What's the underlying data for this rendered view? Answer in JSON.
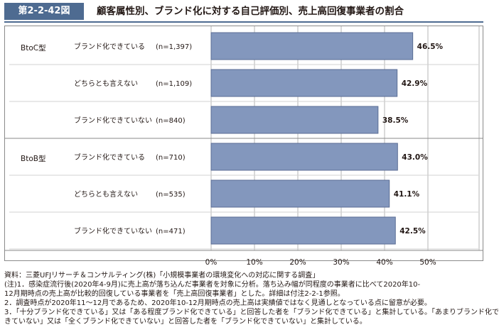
{
  "figure": {
    "number": "第2-2-42図",
    "title": "顧客属性別、ブランド化に対する自己評価別、売上高回復事業者の割合"
  },
  "chart_data": {
    "type": "bar",
    "orientation": "horizontal",
    "groups": [
      {
        "name": "BtoC型",
        "rows": [
          {
            "label": "ブランド化できている",
            "n": "(n=1,397)",
            "value": 46.5,
            "value_label": "46.5%"
          },
          {
            "label": "どちらとも言えない",
            "n": "(n=1,109)",
            "value": 42.9,
            "value_label": "42.9%"
          },
          {
            "label": "ブランド化できていない",
            "n": "(n=840)",
            "value": 38.5,
            "value_label": "38.5%"
          }
        ]
      },
      {
        "name": "BtoB型",
        "rows": [
          {
            "label": "ブランド化できている",
            "n": "(n=710)",
            "value": 43.0,
            "value_label": "43.0%"
          },
          {
            "label": "どちらとも言えない",
            "n": "(n=535)",
            "value": 41.1,
            "value_label": "41.1%"
          },
          {
            "label": "ブランド化できていない",
            "n": "(n=471)",
            "value": 42.5,
            "value_label": "42.5%"
          }
        ]
      }
    ],
    "xlim": [
      0,
      50
    ],
    "xticks": [
      "0%",
      "10%",
      "20%",
      "30%",
      "40%",
      "50%"
    ],
    "grid": true,
    "bar_color": "#8397bd",
    "bar_edge_color": "#5b6e95"
  },
  "notes": [
    "資料：三菱UFJリサーチ＆コンサルティング(株)「小規模事業者の環境変化への対応に関する調査」",
    "(注)1．感染症流行後(2020年4-9月)に売上高が落ち込んだ事業者を対象に分析。落ち込み幅が同程度の事業者に比べて2020年10-",
    "12月期時点の売上高が比較的回復している事業者を「売上高回復事業者」とした。詳細は付注2-2-1参照。",
    "2．調査時点が2020年11～12月であるため、2020年10-12月期時点の売上高は実績値ではなく見通しとなっている点に留意が必要。",
    "3．「十分ブランド化できている」又は「ある程度ブランド化できている」と回答した者を「ブランド化できている」と集計している。「あまりブランド化で",
    "きていない」又は「全くブランド化できていない」と回答した者を「ブランド化できていない」と集計している。"
  ],
  "colors": {
    "header_label_bg": "#4e6b91",
    "rule": "#4e6b91"
  }
}
